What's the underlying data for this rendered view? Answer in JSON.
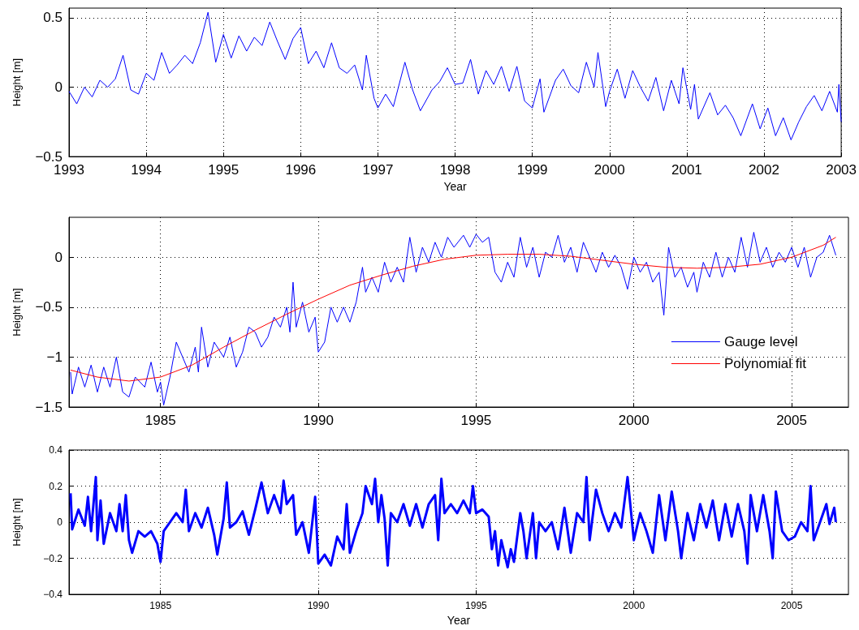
{
  "chart_data": [
    {
      "type": "line",
      "xlabel": "Year",
      "ylabel": "Height [m]",
      "xlim": [
        1993,
        2003
      ],
      "xticks": [
        1993,
        1994,
        1995,
        1996,
        1997,
        1998,
        1999,
        2000,
        2001,
        2002,
        2003
      ],
      "ylim": [
        -0.5,
        0.57
      ],
      "yticks": [
        -0.5,
        0,
        0.5
      ],
      "grid": true,
      "marker": "none",
      "line_style": "solid",
      "series": [
        {
          "color": "#0000ff",
          "x": [
            1993.0,
            1993.1,
            1993.2,
            1993.3,
            1993.4,
            1993.5,
            1993.6,
            1993.7,
            1993.8,
            1993.9,
            1994.0,
            1994.1,
            1994.2,
            1994.3,
            1994.4,
            1994.5,
            1994.6,
            1994.7,
            1994.8,
            1994.9,
            1995.0,
            1995.1,
            1995.2,
            1995.3,
            1995.4,
            1995.5,
            1995.6,
            1995.7,
            1995.8,
            1995.9,
            1996.0,
            1996.1,
            1996.2,
            1996.3,
            1996.4,
            1996.5,
            1996.6,
            1996.7,
            1996.8,
            1996.85,
            1996.95,
            1997.0,
            1997.1,
            1997.2,
            1997.35,
            1997.45,
            1997.55,
            1997.7,
            1997.8,
            1997.9,
            1998.0,
            1998.1,
            1998.2,
            1998.3,
            1998.4,
            1998.5,
            1998.6,
            1998.7,
            1998.8,
            1998.9,
            1999.0,
            1999.1,
            1999.15,
            1999.3,
            1999.4,
            1999.5,
            1999.6,
            1999.7,
            1999.8,
            1999.85,
            1999.95,
            2000.0,
            2000.1,
            2000.2,
            2000.3,
            2000.4,
            2000.5,
            2000.6,
            2000.7,
            2000.8,
            2000.9,
            2000.95,
            2001.05,
            2001.1,
            2001.15,
            2001.3,
            2001.4,
            2001.5,
            2001.6,
            2001.7,
            2001.85,
            2001.95,
            2002.05,
            2002.15,
            2002.25,
            2002.35,
            2002.45,
            2002.55,
            2002.65,
            2002.75,
            2002.85,
            2002.95,
            2002.97,
            2003.0
          ],
          "values": [
            -0.03,
            -0.12,
            0.0,
            -0.07,
            0.05,
            0.0,
            0.06,
            0.23,
            -0.02,
            -0.05,
            0.1,
            0.05,
            0.25,
            0.1,
            0.16,
            0.23,
            0.17,
            0.32,
            0.54,
            0.18,
            0.38,
            0.21,
            0.37,
            0.26,
            0.36,
            0.3,
            0.47,
            0.33,
            0.2,
            0.35,
            0.43,
            0.17,
            0.26,
            0.14,
            0.32,
            0.14,
            0.1,
            0.16,
            -0.02,
            0.23,
            -0.08,
            -0.15,
            -0.05,
            -0.14,
            0.18,
            -0.02,
            -0.17,
            -0.02,
            0.04,
            0.14,
            0.02,
            0.03,
            0.2,
            -0.05,
            0.12,
            0.02,
            0.15,
            -0.03,
            0.15,
            -0.1,
            -0.15,
            0.06,
            -0.18,
            0.05,
            0.13,
            0.01,
            -0.04,
            0.18,
            0.0,
            0.25,
            -0.14,
            -0.03,
            0.13,
            -0.08,
            0.12,
            0.0,
            -0.1,
            0.07,
            -0.17,
            0.05,
            -0.12,
            0.14,
            -0.16,
            0.02,
            -0.23,
            -0.04,
            -0.2,
            -0.13,
            -0.22,
            -0.35,
            -0.12,
            -0.3,
            -0.15,
            -0.35,
            -0.22,
            -0.38,
            -0.25,
            -0.14,
            -0.06,
            -0.17,
            -0.03,
            -0.18,
            0.02,
            -0.25
          ]
        }
      ]
    },
    {
      "type": "line",
      "ylabel": "Height [m]",
      "xlim": [
        1982.1,
        2006.8
      ],
      "xticks": [
        1985,
        1990,
        1995,
        2000,
        2005
      ],
      "ylim": [
        -1.5,
        0.4
      ],
      "yticks": [
        -1.5,
        -1,
        -0.5,
        0
      ],
      "grid": true,
      "marker": "none",
      "line_style": "solid",
      "legend": "bottom right",
      "series": [
        {
          "name": "Gauge level",
          "color": "#0000ff",
          "x": [
            1982.15,
            1982.2,
            1982.4,
            1982.6,
            1982.8,
            1983.0,
            1983.2,
            1983.4,
            1983.6,
            1983.8,
            1984.0,
            1984.2,
            1984.5,
            1984.7,
            1984.9,
            1985.0,
            1985.1,
            1985.3,
            1985.5,
            1985.7,
            1985.9,
            1986.1,
            1986.2,
            1986.3,
            1986.5,
            1986.7,
            1987.0,
            1987.2,
            1987.4,
            1987.6,
            1987.8,
            1988.0,
            1988.2,
            1988.4,
            1988.6,
            1988.8,
            1989.0,
            1989.1,
            1989.2,
            1989.3,
            1989.5,
            1989.7,
            1989.9,
            1990.0,
            1990.2,
            1990.4,
            1990.6,
            1990.8,
            1991.0,
            1991.2,
            1991.4,
            1991.5,
            1991.7,
            1991.9,
            1992.1,
            1992.3,
            1992.5,
            1992.7,
            1992.9,
            1993.1,
            1993.3,
            1993.5,
            1993.7,
            1993.9,
            1994.1,
            1994.3,
            1994.6,
            1994.8,
            1995.0,
            1995.2,
            1995.4,
            1995.6,
            1995.8,
            1996.0,
            1996.2,
            1996.4,
            1996.6,
            1996.8,
            1997.0,
            1997.2,
            1997.4,
            1997.6,
            1997.8,
            1998.0,
            1998.2,
            1998.4,
            1998.6,
            1998.8,
            1999.0,
            1999.2,
            1999.4,
            1999.6,
            1999.8,
            2000.0,
            2000.2,
            2000.4,
            2000.6,
            2000.8,
            2000.95,
            2001.1,
            2001.3,
            2001.5,
            2001.7,
            2001.9,
            2002.0,
            2002.2,
            2002.4,
            2002.6,
            2002.8,
            2003.0,
            2003.2,
            2003.4,
            2003.6,
            2003.8,
            2004.0,
            2004.2,
            2004.4,
            2004.6,
            2004.8,
            2005.0,
            2005.2,
            2005.4,
            2005.6,
            2005.8,
            2006.0,
            2006.2,
            2006.4
          ],
          "values": [
            -1.15,
            -1.37,
            -1.1,
            -1.3,
            -1.08,
            -1.35,
            -1.1,
            -1.3,
            -1.0,
            -1.35,
            -1.4,
            -1.2,
            -1.3,
            -1.05,
            -1.35,
            -1.25,
            -1.48,
            -1.2,
            -0.85,
            -1.0,
            -1.15,
            -0.9,
            -1.15,
            -0.7,
            -1.1,
            -0.85,
            -1.0,
            -0.8,
            -1.1,
            -0.95,
            -0.7,
            -0.75,
            -0.9,
            -0.8,
            -0.6,
            -0.7,
            -0.5,
            -0.75,
            -0.25,
            -0.7,
            -0.45,
            -0.75,
            -0.6,
            -0.95,
            -0.85,
            -0.5,
            -0.65,
            -0.5,
            -0.65,
            -0.45,
            -0.1,
            -0.35,
            -0.2,
            -0.35,
            -0.05,
            -0.25,
            -0.1,
            -0.25,
            0.2,
            -0.15,
            0.1,
            -0.05,
            0.15,
            0.0,
            0.2,
            0.1,
            0.22,
            0.1,
            0.23,
            0.15,
            0.2,
            -0.15,
            -0.25,
            -0.05,
            -0.2,
            0.2,
            -0.1,
            0.1,
            -0.2,
            0.05,
            0.0,
            0.22,
            -0.05,
            0.1,
            -0.15,
            0.15,
            0.0,
            -0.15,
            0.05,
            -0.1,
            0.02,
            -0.1,
            -0.32,
            0.0,
            -0.15,
            -0.05,
            -0.25,
            -0.15,
            -0.58,
            0.1,
            -0.2,
            -0.1,
            -0.3,
            -0.15,
            -0.35,
            -0.05,
            -0.2,
            0.05,
            -0.2,
            0.0,
            -0.15,
            0.2,
            -0.1,
            0.25,
            -0.05,
            0.1,
            -0.1,
            0.05,
            -0.05,
            0.1,
            -0.1,
            0.1,
            -0.2,
            0.0,
            0.05,
            0.22,
            0.02
          ]
        },
        {
          "name": "Polynomial fit",
          "color": "#ff0000",
          "x": [
            1982.15,
            1983,
            1984,
            1985,
            1986,
            1987,
            1988,
            1989,
            1990,
            1991,
            1992,
            1993,
            1994,
            1995,
            1996,
            1997,
            1998,
            1999,
            2000,
            2001,
            2002,
            2003,
            2004,
            2005,
            2006,
            2006.4
          ],
          "values": [
            -1.13,
            -1.2,
            -1.24,
            -1.2,
            -1.08,
            -0.9,
            -0.73,
            -0.57,
            -0.42,
            -0.28,
            -0.18,
            -0.09,
            -0.02,
            0.02,
            0.03,
            0.03,
            0.01,
            -0.03,
            -0.07,
            -0.1,
            -0.11,
            -0.1,
            -0.07,
            0.0,
            0.12,
            0.2
          ]
        }
      ]
    },
    {
      "type": "line",
      "xlabel": "Year",
      "ylabel": "Height [m]",
      "xlim": [
        1982.1,
        2006.8
      ],
      "xticks": [
        1985,
        1990,
        1995,
        2000,
        2005
      ],
      "ylim": [
        -0.4,
        0.4
      ],
      "yticks": [
        -0.4,
        -0.2,
        0,
        0.2,
        0.4
      ],
      "grid": true,
      "marker": "none",
      "line_style": "solid",
      "series": [
        {
          "color": "#0000ff",
          "x": [
            1982.15,
            1982.2,
            1982.4,
            1982.6,
            1982.7,
            1982.8,
            1982.95,
            1983.0,
            1983.1,
            1983.2,
            1983.4,
            1983.6,
            1983.7,
            1983.8,
            1983.9,
            1984.0,
            1984.1,
            1984.3,
            1984.5,
            1984.7,
            1984.9,
            1985.0,
            1985.1,
            1985.3,
            1985.5,
            1985.7,
            1985.8,
            1985.9,
            1986.1,
            1986.3,
            1986.5,
            1986.7,
            1986.8,
            1987.0,
            1987.1,
            1987.2,
            1987.4,
            1987.6,
            1987.8,
            1988.0,
            1988.2,
            1988.4,
            1988.6,
            1988.8,
            1988.9,
            1989.0,
            1989.2,
            1989.3,
            1989.5,
            1989.7,
            1989.9,
            1990.0,
            1990.2,
            1990.4,
            1990.6,
            1990.8,
            1990.9,
            1991.0,
            1991.2,
            1991.4,
            1991.5,
            1991.7,
            1991.8,
            1991.9,
            1992.0,
            1992.1,
            1992.2,
            1992.3,
            1992.5,
            1992.7,
            1992.9,
            1993.1,
            1993.3,
            1993.5,
            1993.7,
            1993.8,
            1993.9,
            1994.0,
            1994.2,
            1994.4,
            1994.6,
            1994.8,
            1994.9,
            1995.0,
            1995.2,
            1995.4,
            1995.5,
            1995.6,
            1995.7,
            1995.8,
            1996.0,
            1996.1,
            1996.2,
            1996.4,
            1996.5,
            1996.6,
            1996.8,
            1996.9,
            1997.0,
            1997.2,
            1997.4,
            1997.6,
            1997.8,
            1998.0,
            1998.2,
            1998.4,
            1998.5,
            1998.6,
            1998.8,
            1999.0,
            1999.2,
            1999.4,
            1999.6,
            1999.8,
            2000.0,
            2000.2,
            2000.4,
            2000.6,
            2000.8,
            2001.0,
            2001.2,
            2001.4,
            2001.5,
            2001.7,
            2001.9,
            2002.1,
            2002.3,
            2002.5,
            2002.7,
            2002.9,
            2003.1,
            2003.3,
            2003.5,
            2003.6,
            2003.7,
            2003.9,
            2004.1,
            2004.3,
            2004.4,
            2004.5,
            2004.7,
            2004.9,
            2005.1,
            2005.3,
            2005.5,
            2005.6,
            2005.7,
            2005.9,
            2006.1,
            2006.2,
            2006.35,
            2006.4
          ],
          "values": [
            0.16,
            -0.04,
            0.07,
            -0.02,
            0.14,
            -0.05,
            0.25,
            -0.1,
            0.12,
            -0.12,
            0.05,
            -0.05,
            0.1,
            -0.05,
            0.15,
            -0.1,
            -0.17,
            -0.05,
            -0.08,
            -0.05,
            -0.12,
            -0.22,
            -0.05,
            0.0,
            0.05,
            0.0,
            0.18,
            -0.05,
            0.05,
            -0.03,
            0.08,
            -0.07,
            -0.18,
            0.02,
            0.22,
            -0.03,
            0.0,
            0.06,
            -0.07,
            0.07,
            0.22,
            0.05,
            0.15,
            0.05,
            0.23,
            0.1,
            0.15,
            -0.07,
            0.0,
            -0.17,
            0.14,
            -0.23,
            -0.18,
            -0.24,
            -0.08,
            -0.15,
            0.1,
            -0.17,
            -0.05,
            0.05,
            0.2,
            0.1,
            0.24,
            0.0,
            0.15,
            0.02,
            -0.24,
            0.05,
            0.0,
            0.1,
            -0.02,
            0.1,
            -0.03,
            0.1,
            0.15,
            -0.1,
            0.24,
            0.05,
            0.1,
            0.05,
            0.12,
            0.05,
            0.2,
            0.05,
            0.07,
            0.03,
            -0.15,
            -0.05,
            -0.24,
            -0.1,
            -0.25,
            -0.15,
            -0.22,
            0.05,
            -0.05,
            -0.2,
            0.05,
            -0.2,
            0.0,
            -0.05,
            0.0,
            -0.15,
            0.08,
            -0.17,
            0.05,
            0.0,
            0.25,
            -0.1,
            0.18,
            0.05,
            -0.05,
            0.05,
            -0.03,
            0.25,
            -0.1,
            0.05,
            -0.05,
            -0.17,
            0.15,
            -0.1,
            0.17,
            -0.05,
            -0.2,
            0.05,
            -0.1,
            0.1,
            -0.03,
            0.12,
            -0.1,
            0.1,
            -0.08,
            0.1,
            -0.05,
            -0.23,
            0.15,
            -0.05,
            0.15,
            -0.05,
            -0.2,
            0.17,
            -0.05,
            -0.1,
            -0.08,
            0.0,
            -0.05,
            0.2,
            -0.1,
            0.0,
            0.1,
            -0.01,
            0.08,
            0.0
          ]
        }
      ]
    }
  ]
}
